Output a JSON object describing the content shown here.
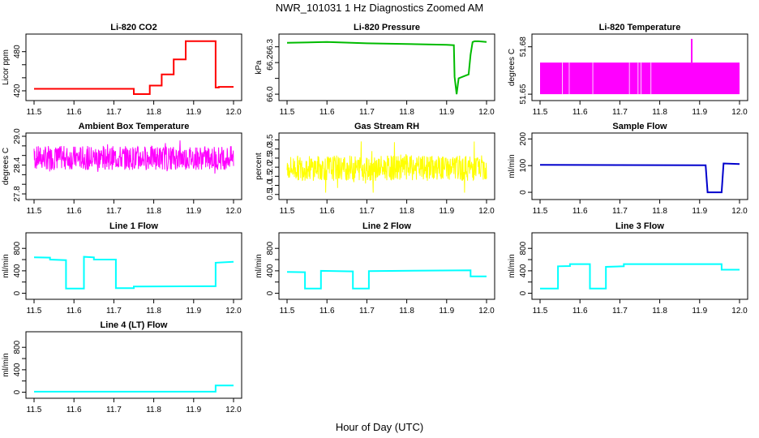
{
  "figure": {
    "title": "NWR_101031  1 Hz Diagnostics Zoomed AM",
    "xlabel": "Hour of Day (UTC)"
  },
  "chart_data": [
    {
      "type": "line",
      "title": "Li-820 CO2",
      "ylabel": "Licor ppm",
      "color": "#ff0000",
      "xlim": [
        11.5,
        12.0
      ],
      "xticks": [
        "11.5",
        "11.6",
        "11.7",
        "11.8",
        "11.9",
        "12.0"
      ],
      "ylim": [
        410,
        502
      ],
      "yticks": [
        420,
        440,
        460,
        480
      ],
      "yticklabels": [
        "420",
        "",
        "",
        "480"
      ],
      "x": [
        11.5,
        11.75,
        11.75,
        11.79,
        11.79,
        11.82,
        11.82,
        11.85,
        11.85,
        11.88,
        11.88,
        11.955,
        11.955,
        11.963,
        11.963,
        12.0
      ],
      "y": [
        423,
        423,
        415,
        415,
        428,
        428,
        445,
        445,
        468,
        468,
        496,
        496,
        425,
        425,
        426,
        426
      ]
    },
    {
      "type": "line",
      "title": "Li-820 Pressure",
      "ylabel": "kPa",
      "color": "#00bb00",
      "xlim": [
        11.5,
        12.0
      ],
      "xticks": [
        "11.5",
        "11.6",
        "11.7",
        "11.8",
        "11.9",
        "12.0"
      ],
      "ylim": [
        65.98,
        66.36
      ],
      "yticks": [
        66.0,
        66.1,
        66.2,
        66.3
      ],
      "yticklabels": [
        "66.0",
        "",
        "66.2",
        "66.3"
      ],
      "x": [
        11.5,
        11.6,
        11.7,
        11.8,
        11.85,
        11.9,
        11.918,
        11.92,
        11.925,
        11.93,
        11.95,
        11.955,
        11.96,
        11.965,
        11.97,
        11.98,
        12.0
      ],
      "y": [
        66.325,
        66.33,
        66.322,
        66.318,
        66.315,
        66.312,
        66.31,
        66.11,
        66.0,
        66.1,
        66.12,
        66.125,
        66.25,
        66.33,
        66.335,
        66.335,
        66.33
      ]
    },
    {
      "type": "line",
      "title": "Li-820 Temperature",
      "ylabel": "degrees C",
      "color": "#ff00ff",
      "xlim": [
        11.5,
        12.0
      ],
      "xticks": [
        "11.5",
        "11.6",
        "11.7",
        "11.8",
        "11.9",
        "12.0"
      ],
      "ylim": [
        51.648,
        51.686
      ],
      "yticks": [
        51.65,
        51.68
      ],
      "yticklabels": [
        "51.65",
        "51.68"
      ],
      "band": [
        51.65,
        51.67
      ],
      "x": [
        11.88,
        11.88
      ],
      "y": [
        51.67,
        51.685
      ]
    },
    {
      "type": "line",
      "title": "Ambient Box Temperature",
      "ylabel": "degrees C",
      "color": "#ff00ff",
      "xlim": [
        11.5,
        12.0
      ],
      "xticks": [
        "11.5",
        "11.6",
        "11.7",
        "11.8",
        "11.9",
        "12.0"
      ],
      "ylim": [
        27.75,
        29.0
      ],
      "yticks": [
        27.8,
        28.0,
        28.2,
        28.4,
        28.6,
        28.8,
        29.0
      ],
      "yticklabels": [
        "27.8",
        "",
        "",
        "28.4",
        "",
        "",
        "29.0"
      ],
      "noise": {
        "base": 28.55,
        "amp": 0.25,
        "min": 27.75,
        "max": 28.95
      }
    },
    {
      "type": "line",
      "title": "Gas Stream RH",
      "ylabel": "percent",
      "color": "#ffff00",
      "xlim": [
        11.5,
        12.0
      ],
      "xticks": [
        "11.5",
        "11.6",
        "11.7",
        "11.8",
        "11.9",
        "12.0"
      ],
      "ylim": [
        0.4,
        3.7
      ],
      "yticks": [
        0.5,
        1.0,
        1.5,
        2.0,
        2.5,
        3.0,
        3.5
      ],
      "yticklabels": [
        "0.5",
        "1.0",
        "1.5",
        "2.0",
        "2.5",
        "3.0",
        "3.5"
      ],
      "noise": {
        "base": 1.95,
        "amp": 0.7,
        "min": 0.6,
        "max": 3.5
      }
    },
    {
      "type": "line",
      "title": "Sample Flow",
      "ylabel": "ml/min",
      "color": "#0000cc",
      "xlim": [
        11.5,
        12.0
      ],
      "xticks": [
        "11.5",
        "11.6",
        "11.7",
        "11.8",
        "11.9",
        "12.0"
      ],
      "ylim": [
        -15,
        210
      ],
      "yticks": [
        0,
        100,
        200
      ],
      "yticklabels": [
        "0",
        "100",
        "200"
      ],
      "x": [
        11.5,
        11.915,
        11.92,
        11.955,
        11.96,
        12.0
      ],
      "y": [
        103,
        101,
        0,
        0,
        108,
        106
      ]
    },
    {
      "type": "line",
      "title": "Line 1 Flow",
      "ylabel": "ml/min",
      "color": "#00ffff",
      "xlim": [
        11.5,
        12.0
      ],
      "xticks": [
        "11.5",
        "11.6",
        "11.7",
        "11.8",
        "11.9",
        "12.0"
      ],
      "ylim": [
        -50,
        1020
      ],
      "yticks": [
        0,
        200,
        400,
        600,
        800
      ],
      "yticklabels": [
        "0",
        "",
        "400",
        "",
        "800"
      ],
      "x": [
        11.5,
        11.54,
        11.54,
        11.58,
        11.58,
        11.625,
        11.625,
        11.65,
        11.65,
        11.705,
        11.705,
        11.75,
        11.75,
        11.955,
        11.955,
        12.0
      ],
      "y": [
        640,
        635,
        600,
        590,
        85,
        85,
        650,
        640,
        600,
        600,
        90,
        90,
        120,
        125,
        545,
        560
      ]
    },
    {
      "type": "line",
      "title": "Line 2 Flow",
      "ylabel": "ml/min",
      "color": "#00ffff",
      "xlim": [
        11.5,
        12.0
      ],
      "xticks": [
        "11.5",
        "11.6",
        "11.7",
        "11.8",
        "11.9",
        "12.0"
      ],
      "ylim": [
        -50,
        1020
      ],
      "yticks": [
        0,
        200,
        400,
        600,
        800
      ],
      "yticklabels": [
        "0",
        "",
        "400",
        "",
        "800"
      ],
      "x": [
        11.5,
        11.545,
        11.545,
        11.585,
        11.585,
        11.665,
        11.665,
        11.705,
        11.705,
        11.96,
        11.96,
        12.0
      ],
      "y": [
        380,
        375,
        85,
        85,
        400,
        390,
        85,
        85,
        395,
        410,
        300,
        300
      ]
    },
    {
      "type": "line",
      "title": "Line 3 Flow",
      "ylabel": "ml/min",
      "color": "#00ffff",
      "xlim": [
        11.5,
        12.0
      ],
      "xticks": [
        "11.5",
        "11.6",
        "11.7",
        "11.8",
        "11.9",
        "12.0"
      ],
      "ylim": [
        -50,
        1020
      ],
      "yticks": [
        0,
        200,
        400,
        600,
        800
      ],
      "yticklabels": [
        "0",
        "",
        "400",
        "",
        "800"
      ],
      "x": [
        11.5,
        11.545,
        11.545,
        11.575,
        11.575,
        11.625,
        11.625,
        11.665,
        11.665,
        11.71,
        11.71,
        11.955,
        11.955,
        12.0
      ],
      "y": [
        85,
        85,
        480,
        485,
        520,
        520,
        85,
        85,
        470,
        480,
        520,
        520,
        420,
        420
      ]
    },
    {
      "type": "line",
      "title": "Line 4 (LT) Flow",
      "ylabel": "ml/min",
      "color": "#00ffff",
      "xlim": [
        11.5,
        12.0
      ],
      "xticks": [
        "11.5",
        "11.6",
        "11.7",
        "11.8",
        "11.9",
        "12.0"
      ],
      "ylim": [
        -50,
        1020
      ],
      "yticks": [
        0,
        200,
        400,
        600,
        800
      ],
      "yticklabels": [
        "0",
        "",
        "400",
        "",
        "800"
      ],
      "x": [
        11.5,
        11.955,
        11.955,
        12.0
      ],
      "y": [
        10,
        10,
        120,
        120
      ]
    }
  ]
}
